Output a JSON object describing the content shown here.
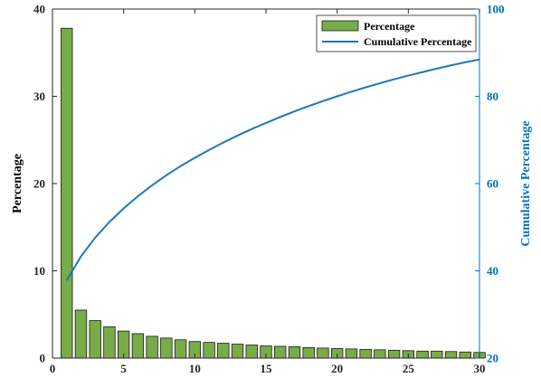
{
  "chart_data": {
    "type": "bar",
    "x": [
      1,
      2,
      3,
      4,
      5,
      6,
      7,
      8,
      9,
      10,
      11,
      12,
      13,
      14,
      15,
      16,
      17,
      18,
      19,
      20,
      21,
      22,
      23,
      24,
      25,
      26,
      27,
      28,
      29,
      30
    ],
    "series": [
      {
        "name": "Percentage",
        "type": "bar",
        "axis": "left",
        "color": "#77ac48",
        "values": [
          37.8,
          5.5,
          4.3,
          3.6,
          3.1,
          2.8,
          2.5,
          2.3,
          2.1,
          1.9,
          1.8,
          1.7,
          1.6,
          1.5,
          1.4,
          1.35,
          1.3,
          1.2,
          1.15,
          1.1,
          1.05,
          1.0,
          0.95,
          0.9,
          0.85,
          0.8,
          0.8,
          0.75,
          0.7,
          0.65
        ]
      },
      {
        "name": "Cumulative  Percentage",
        "type": "line",
        "axis": "right",
        "color": "#1f77b4",
        "values": [
          37.8,
          43.3,
          47.6,
          51.2,
          54.3,
          57.1,
          59.6,
          61.9,
          64.0,
          65.9,
          67.7,
          69.4,
          71.0,
          72.5,
          73.9,
          75.25,
          76.55,
          77.75,
          78.9,
          80.0,
          81.05,
          82.05,
          83.0,
          83.9,
          84.75,
          85.55,
          86.35,
          87.1,
          87.8,
          88.45
        ]
      }
    ],
    "xlim": [
      0,
      30
    ],
    "ylim_left": [
      0,
      40
    ],
    "ylim_right": [
      20,
      100
    ],
    "xticks": [
      0,
      5,
      10,
      15,
      20,
      25,
      30
    ],
    "yticks_left": [
      0,
      10,
      20,
      30,
      40
    ],
    "yticks_right": [
      20,
      40,
      60,
      80,
      100
    ],
    "ylabel_left": "Percentage",
    "ylabel_right": "Cumulative  Percentage",
    "xlabel": "",
    "title": "",
    "grid": false,
    "legend_position": "top-right",
    "right_axis_color": "#0072bd"
  }
}
